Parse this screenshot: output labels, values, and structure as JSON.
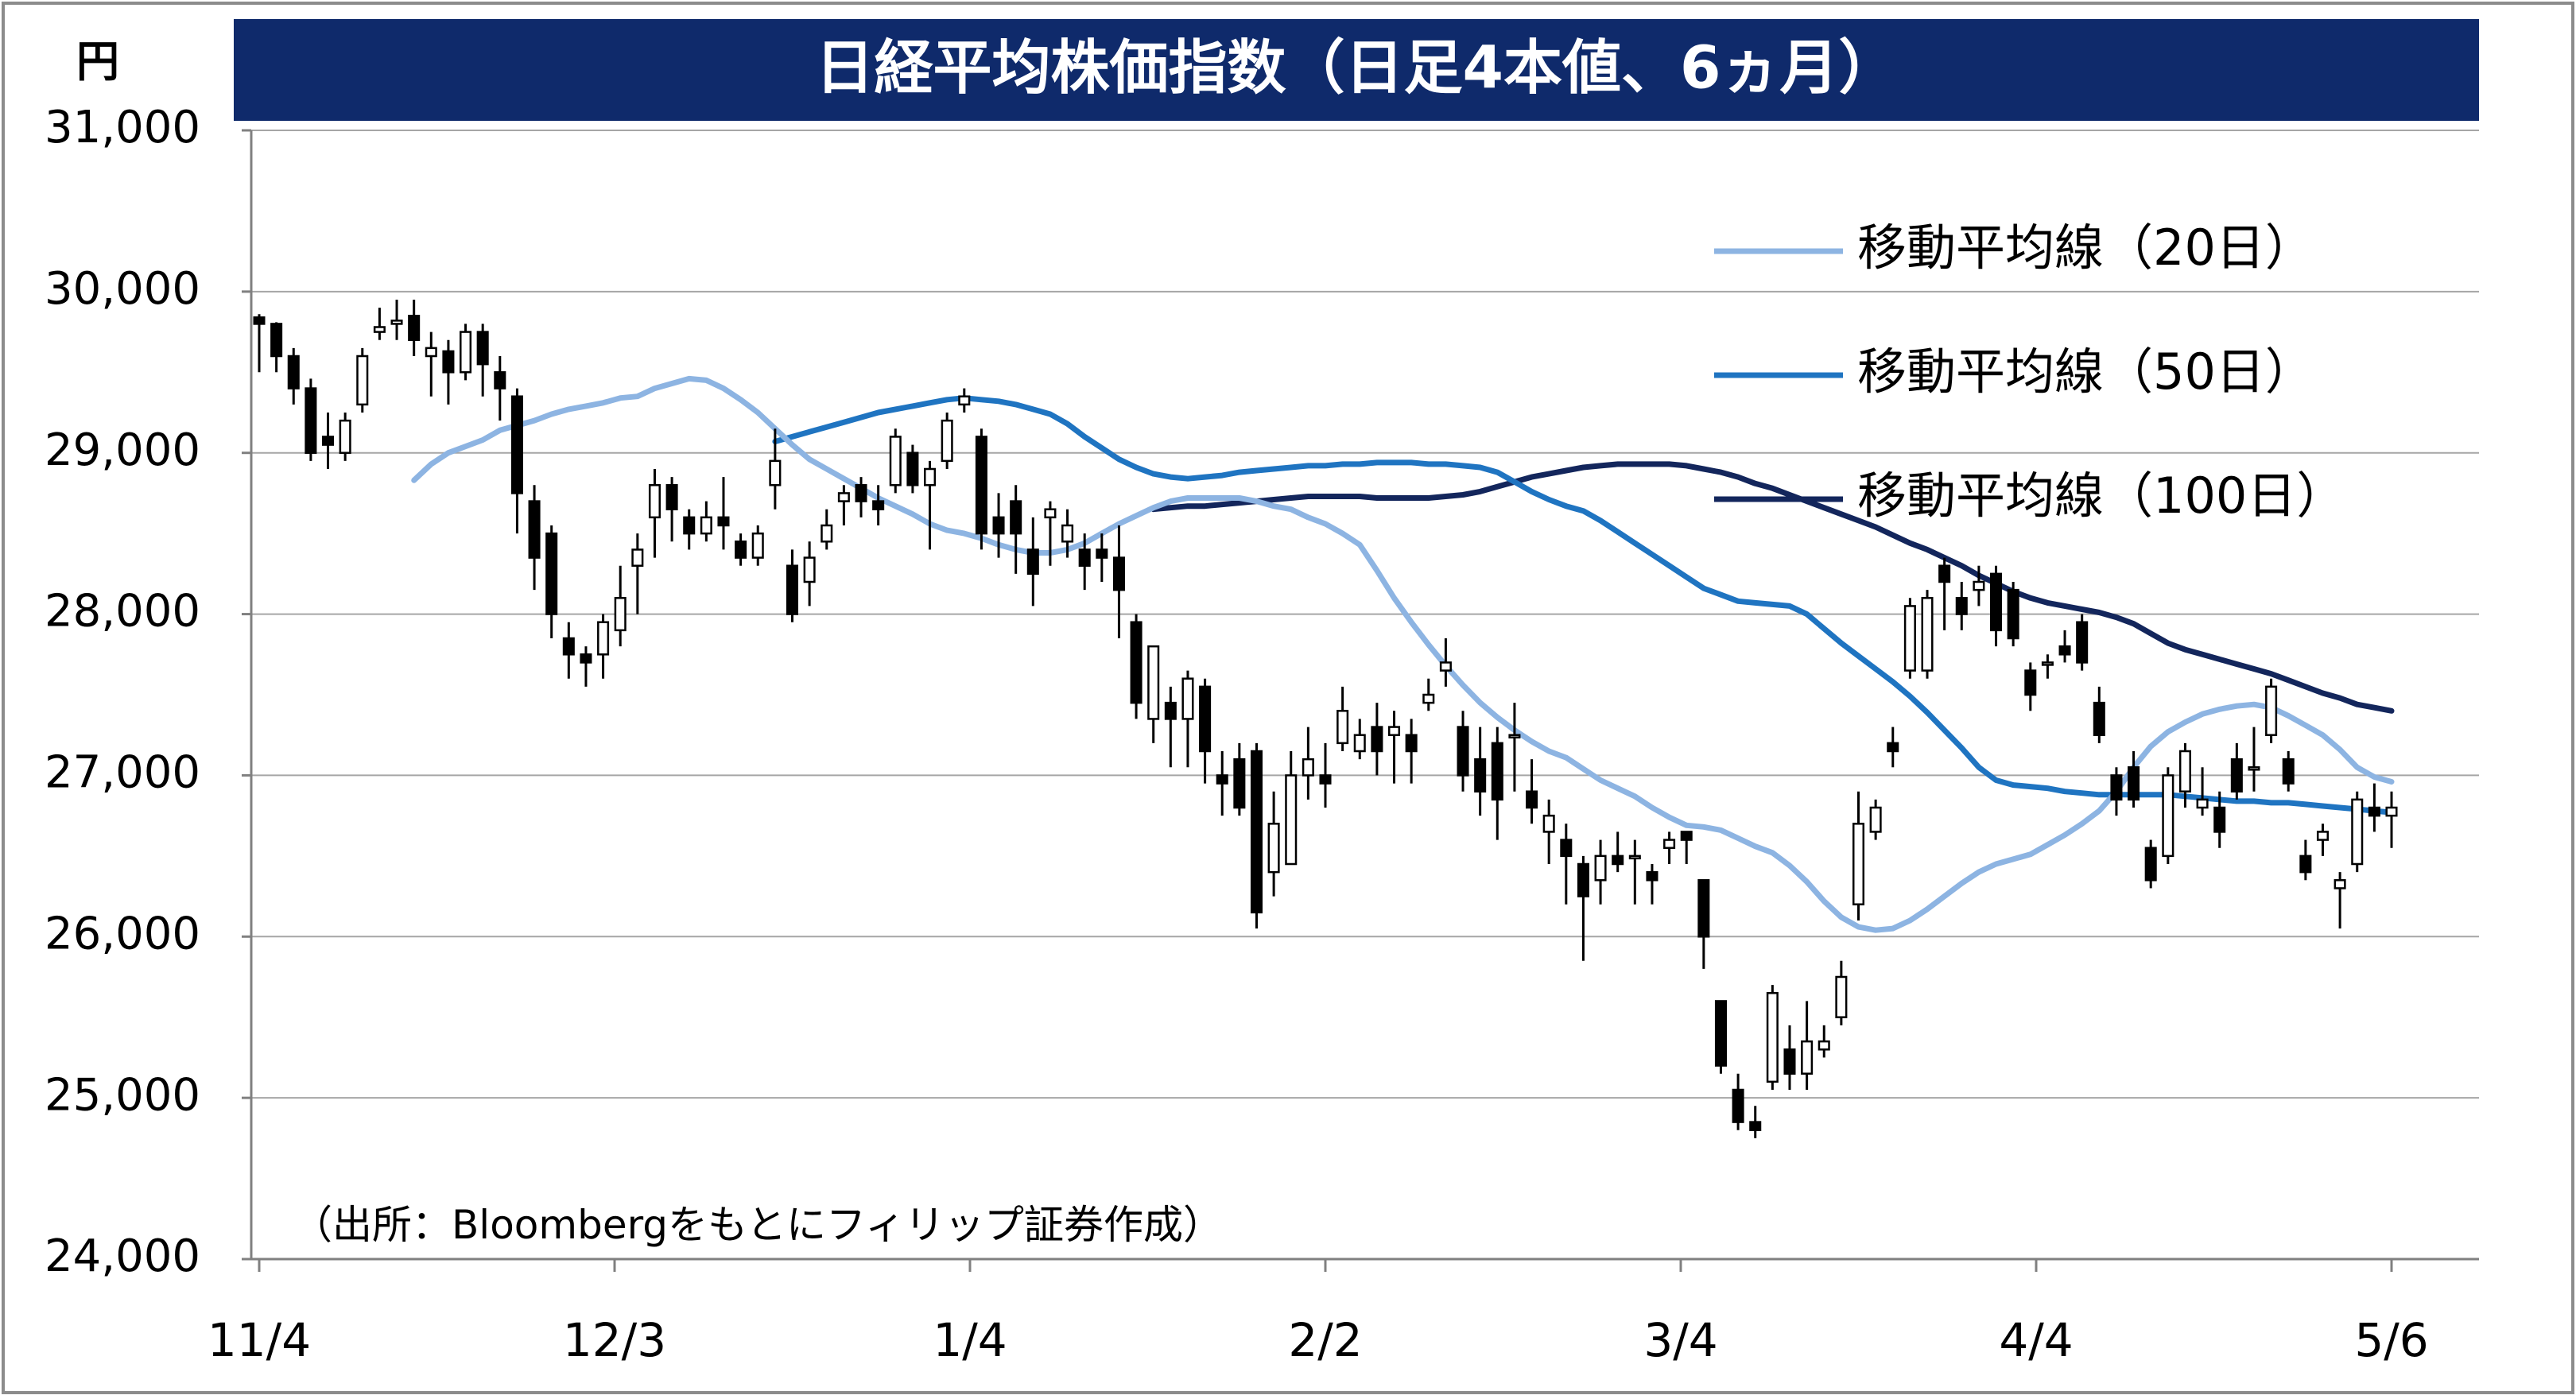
{
  "chart_data": {
    "type": "candlestick",
    "title": "日経平均株価指数（日足4本値、6ヵ月）",
    "y_unit": "円",
    "ylim": [
      24000,
      31000
    ],
    "y_ticks": [
      "24,000",
      "25,000",
      "26,000",
      "27,000",
      "28,000",
      "29,000",
      "30,000",
      "31,000"
    ],
    "x_tick_labels": [
      "11/4",
      "12/3",
      "1/4",
      "2/2",
      "3/4",
      "4/4",
      "5/6"
    ],
    "source_note": "（出所：Bloombergをもとにフィリップ証券作成）",
    "grid": true,
    "legend_position": "top-right",
    "colors": {
      "title_bg": "#0f2a6b",
      "ma20": "#8db4e2",
      "ma50": "#1f74c1",
      "ma100": "#13265c",
      "up_candle": "#ffffff",
      "down_candle": "#000000"
    },
    "series": [
      {
        "name": "移動平均線（20日）",
        "values": [
          28830,
          28930,
          29000,
          29040,
          29080,
          29140,
          29170,
          29200,
          29240,
          29270,
          29290,
          29310,
          29340,
          29350,
          29400,
          29430,
          29460,
          29450,
          29400,
          29330,
          29250,
          29150,
          29050,
          28960,
          28900,
          28840,
          28780,
          28720,
          28670,
          28620,
          28560,
          28520,
          28500,
          28470,
          28430,
          28400,
          28380,
          28380,
          28400,
          28440,
          28500,
          28560,
          28610,
          28660,
          28700,
          28720,
          28720,
          28720,
          28720,
          28700,
          28670,
          28650,
          28600,
          28560,
          28500,
          28430,
          28270,
          28100,
          27950,
          27810,
          27680,
          27560,
          27450,
          27360,
          27280,
          27210,
          27150,
          27110,
          27040,
          26970,
          26920,
          26870,
          26800,
          26740,
          26690,
          26680,
          26660,
          26610,
          26560,
          26520,
          26440,
          26340,
          26220,
          26120,
          26060,
          26040,
          26050,
          26100,
          26170,
          26250,
          26330,
          26400,
          26450,
          26480,
          26510,
          26570,
          26630,
          26700,
          26780,
          26900,
          27050,
          27180,
          27270,
          27330,
          27380,
          27410,
          27430,
          27440,
          27420,
          27370,
          27310,
          27250,
          27160,
          27050,
          26990,
          26960
        ]
      },
      {
        "name": "移動平均線（50日）",
        "values": [
          29070,
          29100,
          29130,
          29160,
          29190,
          29220,
          29250,
          29270,
          29290,
          29310,
          29330,
          29340,
          29330,
          29320,
          29300,
          29270,
          29240,
          29180,
          29100,
          29030,
          28960,
          28910,
          28870,
          28850,
          28840,
          28850,
          28860,
          28880,
          28890,
          28900,
          28910,
          28920,
          28920,
          28930,
          28930,
          28940,
          28940,
          28940,
          28930,
          28930,
          28920,
          28910,
          28880,
          28820,
          28760,
          28710,
          28670,
          28640,
          28580,
          28510,
          28440,
          28370,
          28300,
          28230,
          28160,
          28120,
          28080,
          28070,
          28060,
          28050,
          28000,
          27910,
          27820,
          27740,
          27660,
          27580,
          27490,
          27390,
          27280,
          27170,
          27050,
          26970,
          26940,
          26930,
          26920,
          26900,
          26890,
          26880,
          26880,
          26880,
          26880,
          26880,
          26870,
          26860,
          26850,
          26840,
          26840,
          26830,
          26830,
          26820,
          26810,
          26800,
          26790,
          26780,
          26770
        ]
      },
      {
        "name": "移動平均線（100日）",
        "values": [
          28650,
          28660,
          28670,
          28670,
          28680,
          28690,
          28700,
          28710,
          28720,
          28730,
          28730,
          28730,
          28730,
          28720,
          28720,
          28720,
          28720,
          28730,
          28740,
          28760,
          28790,
          28820,
          28850,
          28870,
          28890,
          28910,
          28920,
          28930,
          28930,
          28930,
          28930,
          28920,
          28900,
          28880,
          28850,
          28810,
          28780,
          28740,
          28700,
          28660,
          28620,
          28580,
          28540,
          28490,
          28440,
          28400,
          28350,
          28300,
          28240,
          28190,
          28140,
          28100,
          28070,
          28050,
          28030,
          28010,
          27980,
          27940,
          27880,
          27820,
          27780,
          27750,
          27720,
          27690,
          27660,
          27630,
          27590,
          27550,
          27510,
          27480,
          27440,
          27420,
          27400
        ]
      }
    ],
    "candles": [
      [
        29840,
        29860,
        29500,
        29800
      ],
      [
        29800,
        29810,
        29500,
        29600
      ],
      [
        29600,
        29650,
        29300,
        29400
      ],
      [
        29400,
        29460,
        28950,
        29000
      ],
      [
        29100,
        29250,
        28900,
        29050
      ],
      [
        29000,
        29250,
        28950,
        29200
      ],
      [
        29300,
        29650,
        29250,
        29600
      ],
      [
        29750,
        29900,
        29700,
        29780
      ],
      [
        29800,
        29950,
        29700,
        29820
      ],
      [
        29850,
        29950,
        29600,
        29700
      ],
      [
        29600,
        29750,
        29350,
        29650
      ],
      [
        29630,
        29700,
        29300,
        29500
      ],
      [
        29500,
        29800,
        29450,
        29750
      ],
      [
        29750,
        29800,
        29350,
        29550
      ],
      [
        29500,
        29600,
        29200,
        29400
      ],
      [
        29350,
        29400,
        28500,
        28750
      ],
      [
        28700,
        28800,
        28150,
        28350
      ],
      [
        28500,
        28550,
        27850,
        28000
      ],
      [
        27850,
        27950,
        27600,
        27750
      ],
      [
        27750,
        27800,
        27550,
        27700
      ],
      [
        27750,
        28000,
        27600,
        27950
      ],
      [
        27900,
        28300,
        27800,
        28100
      ],
      [
        28300,
        28500,
        28000,
        28400
      ],
      [
        28600,
        28900,
        28350,
        28800
      ],
      [
        28800,
        28850,
        28450,
        28650
      ],
      [
        28600,
        28650,
        28400,
        28500
      ],
      [
        28500,
        28700,
        28450,
        28600
      ],
      [
        28600,
        28850,
        28400,
        28550
      ],
      [
        28450,
        28500,
        28300,
        28350
      ],
      [
        28350,
        28550,
        28300,
        28500
      ],
      [
        28800,
        29150,
        28650,
        28950
      ],
      [
        28300,
        28400,
        27950,
        28000
      ],
      [
        28200,
        28450,
        28050,
        28350
      ],
      [
        28450,
        28650,
        28400,
        28550
      ],
      [
        28700,
        28800,
        28550,
        28750
      ],
      [
        28800,
        28850,
        28600,
        28700
      ],
      [
        28700,
        28800,
        28550,
        28650
      ],
      [
        28800,
        29150,
        28750,
        29100
      ],
      [
        29000,
        29050,
        28750,
        28800
      ],
      [
        28800,
        28950,
        28400,
        28900
      ],
      [
        28950,
        29250,
        28900,
        29200
      ],
      [
        29300,
        29400,
        29250,
        29350
      ],
      [
        29100,
        29150,
        28400,
        28500
      ],
      [
        28600,
        28750,
        28350,
        28500
      ],
      [
        28700,
        28800,
        28250,
        28500
      ],
      [
        28400,
        28600,
        28050,
        28250
      ],
      [
        28600,
        28700,
        28300,
        28650
      ],
      [
        28450,
        28650,
        28350,
        28550
      ],
      [
        28400,
        28500,
        28150,
        28300
      ],
      [
        28400,
        28500,
        28200,
        28350
      ],
      [
        28350,
        28550,
        27850,
        28150
      ],
      [
        27950,
        28000,
        27350,
        27450
      ],
      [
        27350,
        27800,
        27200,
        27800
      ],
      [
        27450,
        27550,
        27050,
        27350
      ],
      [
        27350,
        27650,
        27050,
        27600
      ],
      [
        27550,
        27600,
        26950,
        27150
      ],
      [
        27000,
        27150,
        26750,
        26950
      ],
      [
        27100,
        27200,
        26750,
        26800
      ],
      [
        27150,
        27200,
        26050,
        26150
      ],
      [
        26400,
        26900,
        26250,
        26700
      ],
      [
        26450,
        27150,
        26450,
        27000
      ],
      [
        27000,
        27300,
        26850,
        27100
      ],
      [
        27000,
        27200,
        26800,
        26950
      ],
      [
        27200,
        27550,
        27150,
        27400
      ],
      [
        27150,
        27350,
        27100,
        27250
      ],
      [
        27300,
        27450,
        27000,
        27150
      ],
      [
        27250,
        27400,
        26950,
        27300
      ],
      [
        27250,
        27350,
        26950,
        27150
      ],
      [
        27450,
        27600,
        27400,
        27500
      ],
      [
        27650,
        27850,
        27550,
        27700
      ],
      [
        27300,
        27400,
        26900,
        27000
      ],
      [
        27100,
        27300,
        26750,
        26900
      ],
      [
        27200,
        27300,
        26600,
        26850
      ],
      [
        27250,
        27450,
        26900,
        27250
      ],
      [
        26900,
        27100,
        26700,
        26800
      ],
      [
        26650,
        26850,
        26450,
        26750
      ],
      [
        26600,
        26700,
        26200,
        26500
      ],
      [
        26450,
        26500,
        25850,
        26250
      ],
      [
        26350,
        26600,
        26200,
        26500
      ],
      [
        26500,
        26650,
        26400,
        26450
      ],
      [
        26500,
        26600,
        26200,
        26500
      ],
      [
        26400,
        26450,
        26200,
        26350
      ],
      [
        26550,
        26650,
        26450,
        26600
      ],
      [
        26650,
        26650,
        26450,
        26600
      ],
      [
        26350,
        26350,
        25800,
        26000
      ],
      [
        25600,
        25600,
        25150,
        25200
      ],
      [
        25050,
        25150,
        24800,
        24850
      ],
      [
        24850,
        24950,
        24750,
        24800
      ],
      [
        25100,
        25700,
        25050,
        25650
      ],
      [
        25300,
        25450,
        25050,
        25150
      ],
      [
        25150,
        25600,
        25050,
        25350
      ],
      [
        25300,
        25450,
        25250,
        25350
      ],
      [
        25500,
        25850,
        25450,
        25750
      ],
      [
        26200,
        26900,
        26100,
        26700
      ],
      [
        26650,
        26850,
        26600,
        26800
      ],
      [
        27200,
        27300,
        27050,
        27150
      ],
      [
        27650,
        28100,
        27600,
        28050
      ],
      [
        27650,
        28150,
        27600,
        28100
      ],
      [
        28300,
        28350,
        27900,
        28200
      ],
      [
        28100,
        28200,
        27900,
        28000
      ],
      [
        28150,
        28300,
        28050,
        28200
      ],
      [
        28250,
        28300,
        27800,
        27900
      ],
      [
        28150,
        28200,
        27800,
        27850
      ],
      [
        27650,
        27700,
        27400,
        27500
      ],
      [
        27700,
        27750,
        27600,
        27700
      ],
      [
        27800,
        27900,
        27700,
        27750
      ],
      [
        27950,
        28000,
        27650,
        27700
      ],
      [
        27450,
        27550,
        27200,
        27250
      ],
      [
        27000,
        27050,
        26750,
        26850
      ],
      [
        27050,
        27150,
        26800,
        26850
      ],
      [
        26550,
        26600,
        26300,
        26350
      ],
      [
        26500,
        27050,
        26450,
        27000
      ],
      [
        26900,
        27200,
        26800,
        27150
      ],
      [
        26800,
        27050,
        26750,
        26850
      ],
      [
        26800,
        26900,
        26550,
        26650
      ],
      [
        27100,
        27200,
        26850,
        26900
      ],
      [
        27050,
        27300,
        26900,
        27050
      ],
      [
        27250,
        27600,
        27200,
        27550
      ],
      [
        27100,
        27150,
        26900,
        26950
      ],
      [
        26500,
        26600,
        26350,
        26400
      ],
      [
        26600,
        26700,
        26500,
        26650
      ],
      [
        26300,
        26400,
        26050,
        26350
      ],
      [
        26450,
        26900,
        26400,
        26850
      ],
      [
        26800,
        26950,
        26650,
        26750
      ],
      [
        26750,
        26900,
        26550,
        26800
      ]
    ]
  }
}
